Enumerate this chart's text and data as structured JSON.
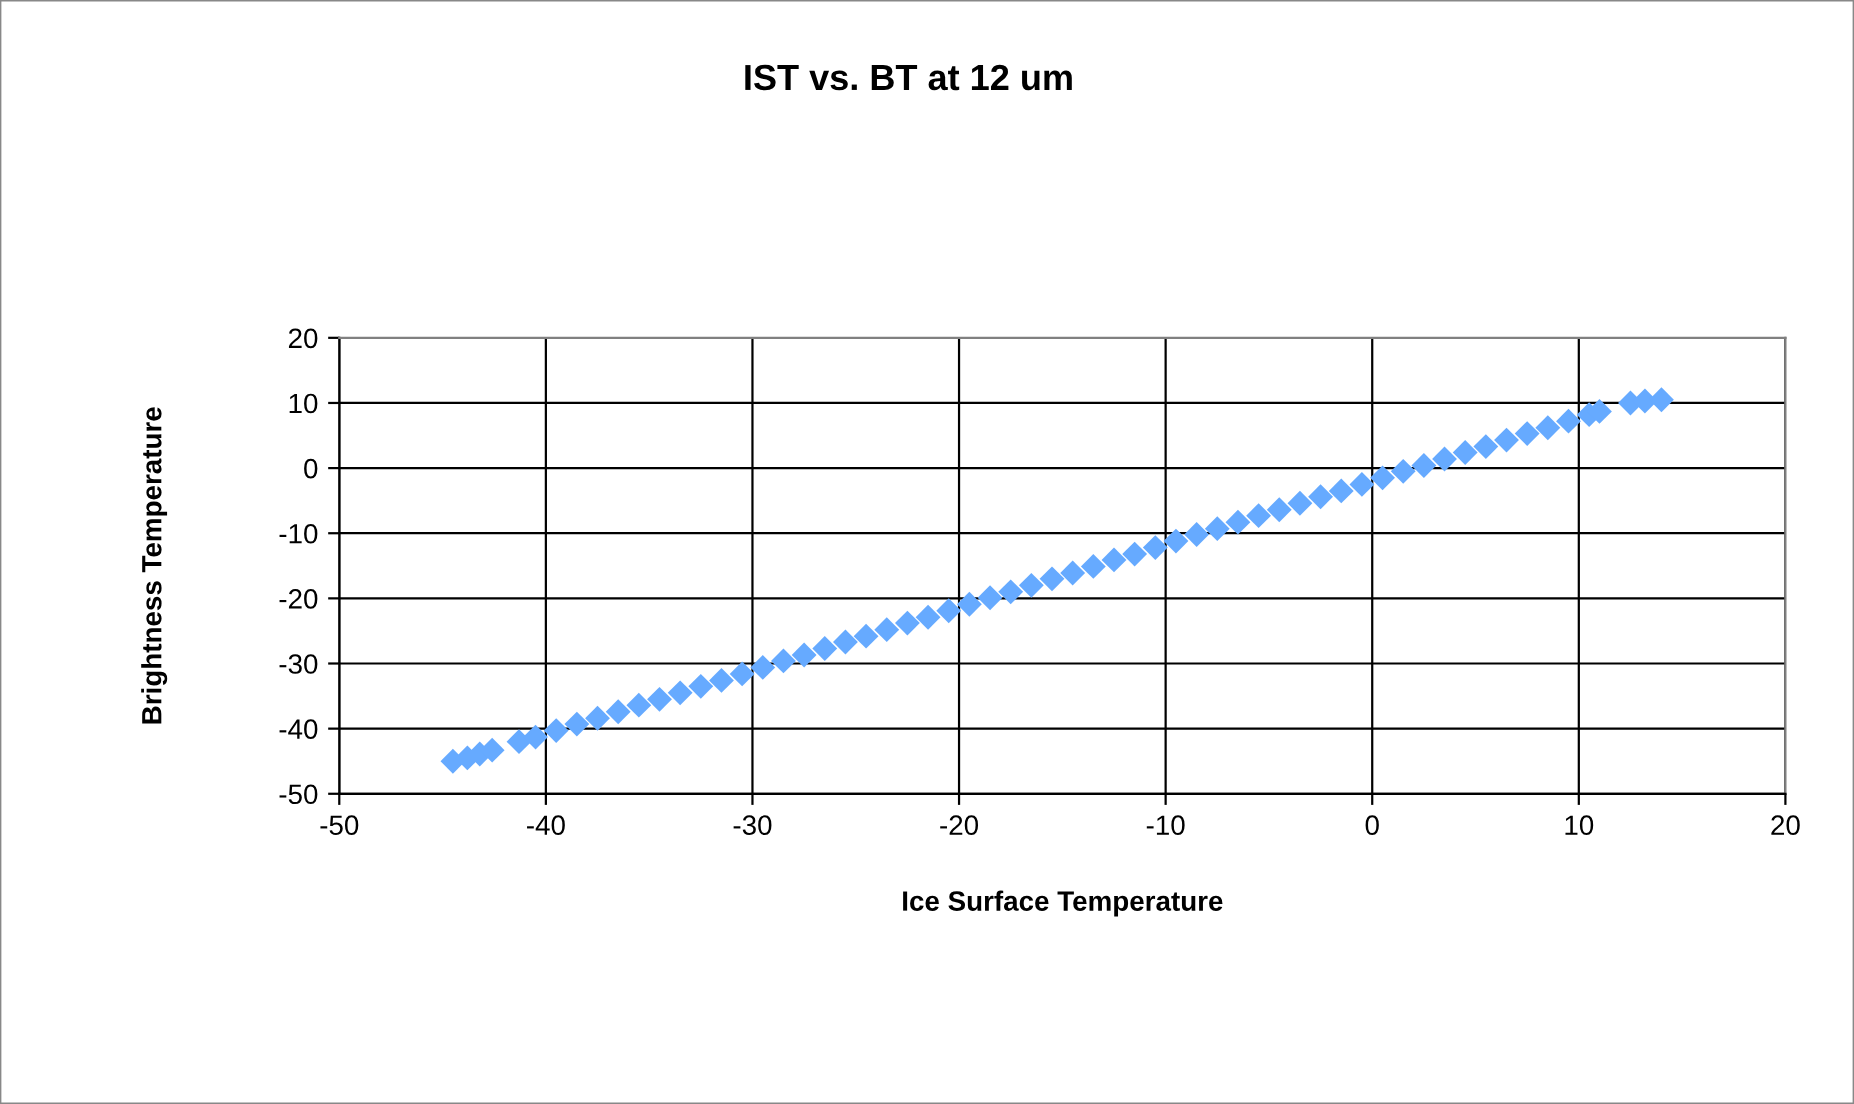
{
  "chart_data": {
    "type": "scatter",
    "title": "IST vs. BT at 12 um",
    "xlabel": "Ice Surface Temperature",
    "ylabel": "Brightness Temperature",
    "series": [
      {
        "color": "#66aaff",
        "x": [
          -44.5,
          -43.8,
          -43.2,
          -42.6,
          -41.3,
          -40.5,
          -39.5,
          -38.5,
          -37.5,
          -36.5,
          -35.5,
          -34.5,
          -33.5,
          -32.5,
          -31.5,
          -30.5,
          -29.5,
          -28.5,
          -27.5,
          -26.5,
          -25.5,
          -24.5,
          -23.5,
          -22.5,
          -21.5,
          -20.5,
          -19.5,
          -18.5,
          -17.5,
          -16.5,
          -15.5,
          -14.5,
          -13.5,
          -12.5,
          -11.5,
          -10.5,
          -9.5,
          -8.5,
          -7.5,
          -6.5,
          -5.5,
          -4.5,
          -3.5,
          -2.5,
          -1.5,
          -0.5,
          0.5,
          1.5,
          2.5,
          3.5,
          4.5,
          5.5,
          6.5,
          7.5,
          8.5,
          9.5,
          10.5,
          11,
          12.5,
          13.2,
          14
        ],
        "values": [
          -45,
          -44.5,
          -43.9,
          -43.3,
          -42,
          -41.3,
          -40.3,
          -39.3,
          -38.4,
          -37.4,
          -36.4,
          -35.5,
          -34.5,
          -33.5,
          -32.6,
          -31.6,
          -30.6,
          -29.6,
          -28.7,
          -27.7,
          -26.7,
          -25.8,
          -24.8,
          -23.8,
          -22.9,
          -21.9,
          -20.9,
          -19.9,
          -19,
          -18,
          -17,
          -16.1,
          -15.1,
          -14.1,
          -13.2,
          -12.2,
          -11.2,
          -10.2,
          -9.3,
          -8.3,
          -7.3,
          -6.4,
          -5.4,
          -4.4,
          -3.5,
          -2.5,
          -1.5,
          -0.5,
          0.4,
          1.4,
          2.4,
          3.3,
          4.3,
          5.3,
          6.2,
          7.2,
          8.2,
          8.7,
          10,
          10.3,
          10.5
        ]
      }
    ],
    "xlim": [
      -50,
      20
    ],
    "xticks": [
      -50,
      -40,
      -30,
      -20,
      -10,
      0,
      10,
      20
    ],
    "ylim": [
      -50,
      20
    ],
    "yticks": [
      -50,
      -40,
      -30,
      -20,
      -10,
      0,
      10,
      20
    ],
    "grid": true,
    "marker": "diamond"
  }
}
